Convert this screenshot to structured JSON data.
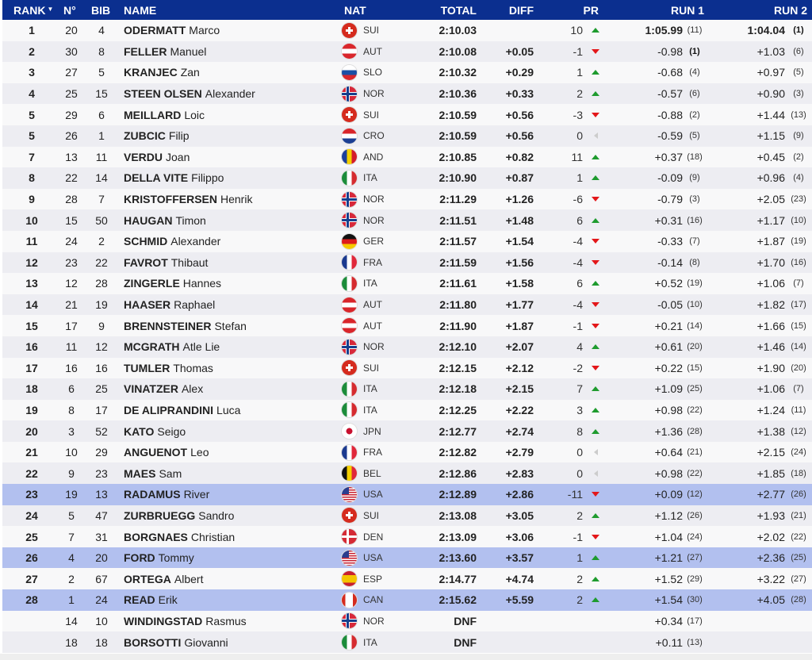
{
  "header": {
    "rank": "RANK",
    "no": "N°",
    "bib": "BIB",
    "name": "NAME",
    "nat": "NAT",
    "total": "TOTAL",
    "diff": "DIFF",
    "pr": "PR",
    "run1": "RUN 1",
    "run2": "RUN 2",
    "sort_icon": "caret-down-icon"
  },
  "colors": {
    "header_bg": "#0b2f8f",
    "highlight": "#b2c0ef",
    "up": "#1e9b2e",
    "down": "#e3171a"
  },
  "rows": [
    {
      "rank": "1",
      "no": "20",
      "bib": "4",
      "last": "ODERMATT",
      "first": "Marco",
      "nat": "SUI",
      "total": "2:10.03",
      "diff": "",
      "pr": "10",
      "trend": "up",
      "run1": "1:05.99",
      "run1_rank": "(11)",
      "run2": "1:04.04",
      "run2_rank": "(1)"
    },
    {
      "rank": "2",
      "no": "30",
      "bib": "8",
      "last": "FELLER",
      "first": "Manuel",
      "nat": "AUT",
      "total": "2:10.08",
      "diff": "+0.05",
      "pr": "-1",
      "trend": "down",
      "run1": "-0.98",
      "run1_rank": "(1)",
      "run2": "+1.03",
      "run2_rank": "(6)"
    },
    {
      "rank": "3",
      "no": "27",
      "bib": "5",
      "last": "KRANJEC",
      "first": "Zan",
      "nat": "SLO",
      "total": "2:10.32",
      "diff": "+0.29",
      "pr": "1",
      "trend": "up",
      "run1": "-0.68",
      "run1_rank": "(4)",
      "run2": "+0.97",
      "run2_rank": "(5)"
    },
    {
      "rank": "4",
      "no": "25",
      "bib": "15",
      "last": "STEEN OLSEN",
      "first": "Alexander",
      "nat": "NOR",
      "total": "2:10.36",
      "diff": "+0.33",
      "pr": "2",
      "trend": "up",
      "run1": "-0.57",
      "run1_rank": "(6)",
      "run2": "+0.90",
      "run2_rank": "(3)"
    },
    {
      "rank": "5",
      "no": "29",
      "bib": "6",
      "last": "MEILLARD",
      "first": "Loic",
      "nat": "SUI",
      "total": "2:10.59",
      "diff": "+0.56",
      "pr": "-3",
      "trend": "down",
      "run1": "-0.88",
      "run1_rank": "(2)",
      "run2": "+1.44",
      "run2_rank": "(13)"
    },
    {
      "rank": "5",
      "no": "26",
      "bib": "1",
      "last": "ZUBCIC",
      "first": "Filip",
      "nat": "CRO",
      "total": "2:10.59",
      "diff": "+0.56",
      "pr": "0",
      "trend": "same",
      "run1": "-0.59",
      "run1_rank": "(5)",
      "run2": "+1.15",
      "run2_rank": "(9)"
    },
    {
      "rank": "7",
      "no": "13",
      "bib": "11",
      "last": "VERDU",
      "first": "Joan",
      "nat": "AND",
      "total": "2:10.85",
      "diff": "+0.82",
      "pr": "11",
      "trend": "up",
      "run1": "+0.37",
      "run1_rank": "(18)",
      "run2": "+0.45",
      "run2_rank": "(2)"
    },
    {
      "rank": "8",
      "no": "22",
      "bib": "14",
      "last": "DELLA VITE",
      "first": "Filippo",
      "nat": "ITA",
      "total": "2:10.90",
      "diff": "+0.87",
      "pr": "1",
      "trend": "up",
      "run1": "-0.09",
      "run1_rank": "(9)",
      "run2": "+0.96",
      "run2_rank": "(4)"
    },
    {
      "rank": "9",
      "no": "28",
      "bib": "7",
      "last": "KRISTOFFERSEN",
      "first": "Henrik",
      "nat": "NOR",
      "total": "2:11.29",
      "diff": "+1.26",
      "pr": "-6",
      "trend": "down",
      "run1": "-0.79",
      "run1_rank": "(3)",
      "run2": "+2.05",
      "run2_rank": "(23)"
    },
    {
      "rank": "10",
      "no": "15",
      "bib": "50",
      "last": "HAUGAN",
      "first": "Timon",
      "nat": "NOR",
      "total": "2:11.51",
      "diff": "+1.48",
      "pr": "6",
      "trend": "up",
      "run1": "+0.31",
      "run1_rank": "(16)",
      "run2": "+1.17",
      "run2_rank": "(10)"
    },
    {
      "rank": "11",
      "no": "24",
      "bib": "2",
      "last": "SCHMID",
      "first": "Alexander",
      "nat": "GER",
      "total": "2:11.57",
      "diff": "+1.54",
      "pr": "-4",
      "trend": "down",
      "run1": "-0.33",
      "run1_rank": "(7)",
      "run2": "+1.87",
      "run2_rank": "(19)"
    },
    {
      "rank": "12",
      "no": "23",
      "bib": "22",
      "last": "FAVROT",
      "first": "Thibaut",
      "nat": "FRA",
      "total": "2:11.59",
      "diff": "+1.56",
      "pr": "-4",
      "trend": "down",
      "run1": "-0.14",
      "run1_rank": "(8)",
      "run2": "+1.70",
      "run2_rank": "(16)"
    },
    {
      "rank": "13",
      "no": "12",
      "bib": "28",
      "last": "ZINGERLE",
      "first": "Hannes",
      "nat": "ITA",
      "total": "2:11.61",
      "diff": "+1.58",
      "pr": "6",
      "trend": "up",
      "run1": "+0.52",
      "run1_rank": "(19)",
      "run2": "+1.06",
      "run2_rank": "(7)"
    },
    {
      "rank": "14",
      "no": "21",
      "bib": "19",
      "last": "HAASER",
      "first": "Raphael",
      "nat": "AUT",
      "total": "2:11.80",
      "diff": "+1.77",
      "pr": "-4",
      "trend": "down",
      "run1": "-0.05",
      "run1_rank": "(10)",
      "run2": "+1.82",
      "run2_rank": "(17)"
    },
    {
      "rank": "15",
      "no": "17",
      "bib": "9",
      "last": "BRENNSTEINER",
      "first": "Stefan",
      "nat": "AUT",
      "total": "2:11.90",
      "diff": "+1.87",
      "pr": "-1",
      "trend": "down",
      "run1": "+0.21",
      "run1_rank": "(14)",
      "run2": "+1.66",
      "run2_rank": "(15)"
    },
    {
      "rank": "16",
      "no": "11",
      "bib": "12",
      "last": "MCGRATH",
      "first": "Atle Lie",
      "nat": "NOR",
      "total": "2:12.10",
      "diff": "+2.07",
      "pr": "4",
      "trend": "up",
      "run1": "+0.61",
      "run1_rank": "(20)",
      "run2": "+1.46",
      "run2_rank": "(14)"
    },
    {
      "rank": "17",
      "no": "16",
      "bib": "16",
      "last": "TUMLER",
      "first": "Thomas",
      "nat": "SUI",
      "total": "2:12.15",
      "diff": "+2.12",
      "pr": "-2",
      "trend": "down",
      "run1": "+0.22",
      "run1_rank": "(15)",
      "run2": "+1.90",
      "run2_rank": "(20)"
    },
    {
      "rank": "18",
      "no": "6",
      "bib": "25",
      "last": "VINATZER",
      "first": "Alex",
      "nat": "ITA",
      "total": "2:12.18",
      "diff": "+2.15",
      "pr": "7",
      "trend": "up",
      "run1": "+1.09",
      "run1_rank": "(25)",
      "run2": "+1.06",
      "run2_rank": "(7)"
    },
    {
      "rank": "19",
      "no": "8",
      "bib": "17",
      "last": "DE ALIPRANDINI",
      "first": "Luca",
      "nat": "ITA",
      "total": "2:12.25",
      "diff": "+2.22",
      "pr": "3",
      "trend": "up",
      "run1": "+0.98",
      "run1_rank": "(22)",
      "run2": "+1.24",
      "run2_rank": "(11)"
    },
    {
      "rank": "20",
      "no": "3",
      "bib": "52",
      "last": "KATO",
      "first": "Seigo",
      "nat": "JPN",
      "total": "2:12.77",
      "diff": "+2.74",
      "pr": "8",
      "trend": "up",
      "run1": "+1.36",
      "run1_rank": "(28)",
      "run2": "+1.38",
      "run2_rank": "(12)"
    },
    {
      "rank": "21",
      "no": "10",
      "bib": "29",
      "last": "ANGUENOT",
      "first": "Leo",
      "nat": "FRA",
      "total": "2:12.82",
      "diff": "+2.79",
      "pr": "0",
      "trend": "same",
      "run1": "+0.64",
      "run1_rank": "(21)",
      "run2": "+2.15",
      "run2_rank": "(24)"
    },
    {
      "rank": "22",
      "no": "9",
      "bib": "23",
      "last": "MAES",
      "first": "Sam",
      "nat": "BEL",
      "total": "2:12.86",
      "diff": "+2.83",
      "pr": "0",
      "trend": "same",
      "run1": "+0.98",
      "run1_rank": "(22)",
      "run2": "+1.85",
      "run2_rank": "(18)"
    },
    {
      "rank": "23",
      "no": "19",
      "bib": "13",
      "last": "RADAMUS",
      "first": "River",
      "nat": "USA",
      "total": "2:12.89",
      "diff": "+2.86",
      "pr": "-11",
      "trend": "down",
      "run1": "+0.09",
      "run1_rank": "(12)",
      "run2": "+2.77",
      "run2_rank": "(26)",
      "highlight": true
    },
    {
      "rank": "24",
      "no": "5",
      "bib": "47",
      "last": "ZURBRUEGG",
      "first": "Sandro",
      "nat": "SUI",
      "total": "2:13.08",
      "diff": "+3.05",
      "pr": "2",
      "trend": "up",
      "run1": "+1.12",
      "run1_rank": "(26)",
      "run2": "+1.93",
      "run2_rank": "(21)"
    },
    {
      "rank": "25",
      "no": "7",
      "bib": "31",
      "last": "BORGNAES",
      "first": "Christian",
      "nat": "DEN",
      "total": "2:13.09",
      "diff": "+3.06",
      "pr": "-1",
      "trend": "down",
      "run1": "+1.04",
      "run1_rank": "(24)",
      "run2": "+2.02",
      "run2_rank": "(22)"
    },
    {
      "rank": "26",
      "no": "4",
      "bib": "20",
      "last": "FORD",
      "first": "Tommy",
      "nat": "USA",
      "total": "2:13.60",
      "diff": "+3.57",
      "pr": "1",
      "trend": "up",
      "run1": "+1.21",
      "run1_rank": "(27)",
      "run2": "+2.36",
      "run2_rank": "(25)",
      "highlight": true
    },
    {
      "rank": "27",
      "no": "2",
      "bib": "67",
      "last": "ORTEGA",
      "first": "Albert",
      "nat": "ESP",
      "total": "2:14.77",
      "diff": "+4.74",
      "pr": "2",
      "trend": "up",
      "run1": "+1.52",
      "run1_rank": "(29)",
      "run2": "+3.22",
      "run2_rank": "(27)"
    },
    {
      "rank": "28",
      "no": "1",
      "bib": "24",
      "last": "READ",
      "first": "Erik",
      "nat": "CAN",
      "total": "2:15.62",
      "diff": "+5.59",
      "pr": "2",
      "trend": "up",
      "run1": "+1.54",
      "run1_rank": "(30)",
      "run2": "+4.05",
      "run2_rank": "(28)",
      "highlight": true
    },
    {
      "rank": "",
      "no": "14",
      "bib": "10",
      "last": "WINDINGSTAD",
      "first": "Rasmus",
      "nat": "NOR",
      "total": "DNF",
      "diff": "",
      "pr": "",
      "trend": "",
      "run1": "+0.34",
      "run1_rank": "(17)",
      "run2": "",
      "run2_rank": ""
    },
    {
      "rank": "",
      "no": "18",
      "bib": "18",
      "last": "BORSOTTI",
      "first": "Giovanni",
      "nat": "ITA",
      "total": "DNF",
      "diff": "",
      "pr": "",
      "trend": "",
      "run1": "+0.11",
      "run1_rank": "(13)",
      "run2": "",
      "run2_rank": ""
    }
  ]
}
